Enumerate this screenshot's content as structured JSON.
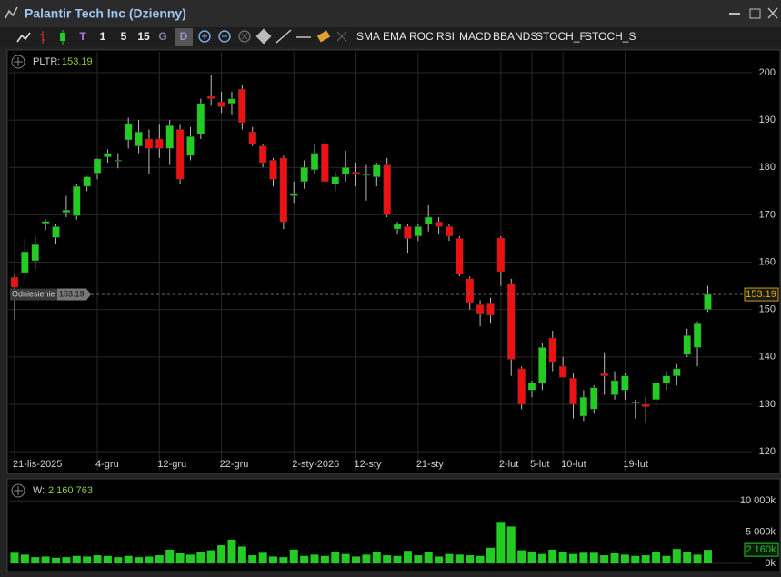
{
  "window": {
    "title": "Palantir Tech Inc (Dzienny)"
  },
  "toolbar": {
    "buttons": [
      "T",
      "1",
      "5",
      "15",
      "G",
      "D"
    ],
    "indicators": [
      "SMA",
      "EMA",
      "ROC",
      "RSI",
      "MACD",
      "BBANDS",
      "STOCH_F",
      "STOCH_S"
    ]
  },
  "chart_data": [
    {
      "type": "candlestick",
      "symbol_label": "PLTR:",
      "last_close_label": "153.19",
      "reference_label": "Odniesienie",
      "up_color": "#22cc22",
      "down_color": "#ee1111",
      "grid": true,
      "ylim": [
        116,
        204.4
      ],
      "yticks": [
        120,
        130,
        140,
        150,
        160,
        170,
        180,
        190,
        200
      ],
      "categories": [
        "21-lis-2025",
        null,
        null,
        null,
        null,
        null,
        null,
        null,
        "4-gru",
        null,
        null,
        null,
        null,
        null,
        "12-gru",
        null,
        null,
        null,
        null,
        null,
        "22-gru",
        null,
        null,
        null,
        null,
        null,
        null,
        "2-sty-2026",
        null,
        null,
        null,
        null,
        null,
        "12-sty",
        null,
        null,
        null,
        null,
        null,
        "21-sty",
        null,
        null,
        null,
        null,
        null,
        null,
        null,
        "2-lut",
        null,
        null,
        "5-lut",
        null,
        null,
        "10-lut",
        null,
        null,
        null,
        null,
        null,
        "19-lut",
        null,
        null,
        null,
        null,
        null,
        null,
        null,
        null
      ],
      "open": [
        156.8,
        157.8,
        160.3,
        168.2,
        165.2,
        170.5,
        169.8,
        176.0,
        178.8,
        182.2,
        181.5,
        185.8,
        184.5,
        186.0,
        186.0,
        184.0,
        188.0,
        182.5,
        187.0,
        195.0,
        193.8,
        193.5,
        196.5,
        187.5,
        184.5,
        181.5,
        182.0,
        174.0,
        177.0,
        179.5,
        185.0,
        176.5,
        178.5,
        179.0,
        178.5,
        178.0,
        180.5,
        167.0,
        167.5,
        165.5,
        168.0,
        168.5,
        167.5,
        165.0,
        156.5,
        151.0,
        151.2,
        165.1,
        155.5,
        137.5,
        133.0,
        134.5,
        144.0,
        138.0,
        135.5,
        127.5,
        129.0,
        136.5,
        132.0,
        133.0,
        130.5,
        130.0,
        131.0,
        134.5,
        136.0,
        140.5,
        142.0,
        150.0
      ],
      "high": [
        157.5,
        165.0,
        165.5,
        169.0,
        168.0,
        174.0,
        176.5,
        178.2,
        182.0,
        183.8,
        183.0,
        190.5,
        190.0,
        188.0,
        189.0,
        190.0,
        189.0,
        188.5,
        194.5,
        199.5,
        196.0,
        196.0,
        197.5,
        188.5,
        185.0,
        182.0,
        182.5,
        177.0,
        181.5,
        185.0,
        186.0,
        179.0,
        183.5,
        181.0,
        180.5,
        181.0,
        182.0,
        168.5,
        168.0,
        168.0,
        172.0,
        169.5,
        168.0,
        165.5,
        157.0,
        152.0,
        152.5,
        165.5,
        156.5,
        138.0,
        135.0,
        143.0,
        145.5,
        140.0,
        136.5,
        133.0,
        134.0,
        141.0,
        137.0,
        136.5,
        131.0,
        131.5,
        134.5,
        137.0,
        138.5,
        146.0,
        147.5,
        155.0
      ],
      "low": [
        147.8,
        156.5,
        158.5,
        166.8,
        163.8,
        169.5,
        169.0,
        175.0,
        177.5,
        181.0,
        179.8,
        184.0,
        183.0,
        178.5,
        182.0,
        180.5,
        176.5,
        181.5,
        186.0,
        193.0,
        191.5,
        191.0,
        188.0,
        184.5,
        180.0,
        176.0,
        167.0,
        172.5,
        175.5,
        178.5,
        175.5,
        175.0,
        177.0,
        176.0,
        173.0,
        176.0,
        169.5,
        166.0,
        162.0,
        164.5,
        166.5,
        166.0,
        164.5,
        157.0,
        150.0,
        146.5,
        147.0,
        155.0,
        136.0,
        129.0,
        131.5,
        133.0,
        137.0,
        136.0,
        127.0,
        126.5,
        128.0,
        132.0,
        131.0,
        131.0,
        127.0,
        126.0,
        129.5,
        133.0,
        134.0,
        140.0,
        138.0,
        149.5
      ],
      "close": [
        154.7,
        162.2,
        163.7,
        168.6,
        167.5,
        171.0,
        176.0,
        178.0,
        181.8,
        183.0,
        181.5,
        189.2,
        187.5,
        184.0,
        184.0,
        188.8,
        177.5,
        186.5,
        193.5,
        194.5,
        192.8,
        194.5,
        189.5,
        185.0,
        181.0,
        177.5,
        168.5,
        174.5,
        180.0,
        183.0,
        177.0,
        178.0,
        180.0,
        178.5,
        178.5,
        180.5,
        170.0,
        168.0,
        165.0,
        167.5,
        169.5,
        167.5,
        165.5,
        157.5,
        151.5,
        149.0,
        148.8,
        158.0,
        139.5,
        130.0,
        134.5,
        142.0,
        139.0,
        135.7,
        130.0,
        131.5,
        133.5,
        136.0,
        135.0,
        136.0,
        130.5,
        129.5,
        134.5,
        136.0,
        137.5,
        144.5,
        147.0,
        153.19
      ]
    },
    {
      "type": "bar",
      "label": "W:",
      "current_label": "2 160 763",
      "current_axis_label": "2 160k",
      "color": "#22cc22",
      "ylim": [
        0,
        10900000
      ],
      "yticks": [
        {
          "value": 10000000,
          "label": "10 000k"
        },
        {
          "value": 5000000,
          "label": "5 000k"
        },
        {
          "value": 0,
          "label": "0k"
        }
      ],
      "values": [
        1700000,
        1400000,
        1000000,
        1100000,
        900000,
        1000000,
        1200000,
        1100000,
        1300000,
        1200000,
        1000000,
        1200000,
        1000000,
        1100000,
        1300000,
        2200000,
        1600000,
        1400000,
        1800000,
        2100000,
        2900000,
        3800000,
        2700000,
        1300000,
        1700000,
        1100000,
        1000000,
        2200000,
        1200000,
        1400000,
        1200000,
        1900000,
        1500000,
        1100000,
        1400000,
        1800000,
        1300000,
        1200000,
        2000000,
        1300000,
        1800000,
        1100000,
        1500000,
        1400000,
        1300000,
        1200000,
        2500000,
        6500000,
        5900000,
        2100000,
        1900000,
        1500000,
        2200000,
        1800000,
        1500000,
        1700000,
        1700000,
        1300000,
        1600000,
        1400000,
        1200000,
        1300000,
        1800000,
        1200000,
        2300000,
        1800000,
        1400000,
        2160763
      ]
    }
  ]
}
